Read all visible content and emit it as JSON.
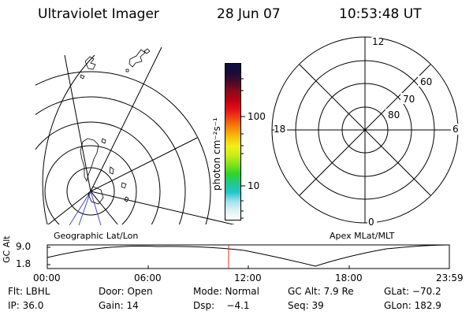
{
  "header": {
    "instrument": "Ultraviolet Imager",
    "date": "28 Jun 07",
    "time": "10:53:48 UT"
  },
  "colorbar": {
    "unit_label": "photon cm⁻²s⁻¹",
    "tick_labels": [
      "100",
      "10"
    ],
    "colors": [
      "#101040",
      "#1a0c38",
      "#4b0a2a",
      "#8a0a1a",
      "#c00014",
      "#e3111a",
      "#f04a10",
      "#f58a0a",
      "#f6c20a",
      "#f2ee18",
      "#c8ec18",
      "#7ee41a",
      "#2ed42a",
      "#20c98c",
      "#22c6c8",
      "#9ee2ee",
      "#dff2f6",
      "#ffffff"
    ]
  },
  "left_panel": {
    "label": "Geographic Lat/Lon"
  },
  "right_panel": {
    "label": "Apex MLat/MLT",
    "mlt_labels": {
      "top": "12",
      "left": "18",
      "right": "6",
      "bottom": "0"
    },
    "lat_labels": [
      "60",
      "70",
      "80"
    ]
  },
  "altitude_plot": {
    "axis_label": "GC Alt",
    "y_ticks": [
      "9.0",
      "1.8"
    ],
    "x_ticks": [
      "00:00",
      "06:00",
      "12:00",
      "18:00",
      "23:59"
    ],
    "marker_color": "#d03020"
  },
  "status": {
    "row1": {
      "filter": "Flt: LBHL",
      "door": "Door: Open",
      "mode": "Mode: Normal",
      "gc_alt": "GC Alt: 7.9 Re",
      "glat": "GLat: −70.2"
    },
    "row2": {
      "ip": "IP: 36.0",
      "gain": "Gain: 14",
      "dsp": "Dsp:    −4.1",
      "seq": "Seq: 39",
      "glon": "GLon: 182.9"
    }
  }
}
